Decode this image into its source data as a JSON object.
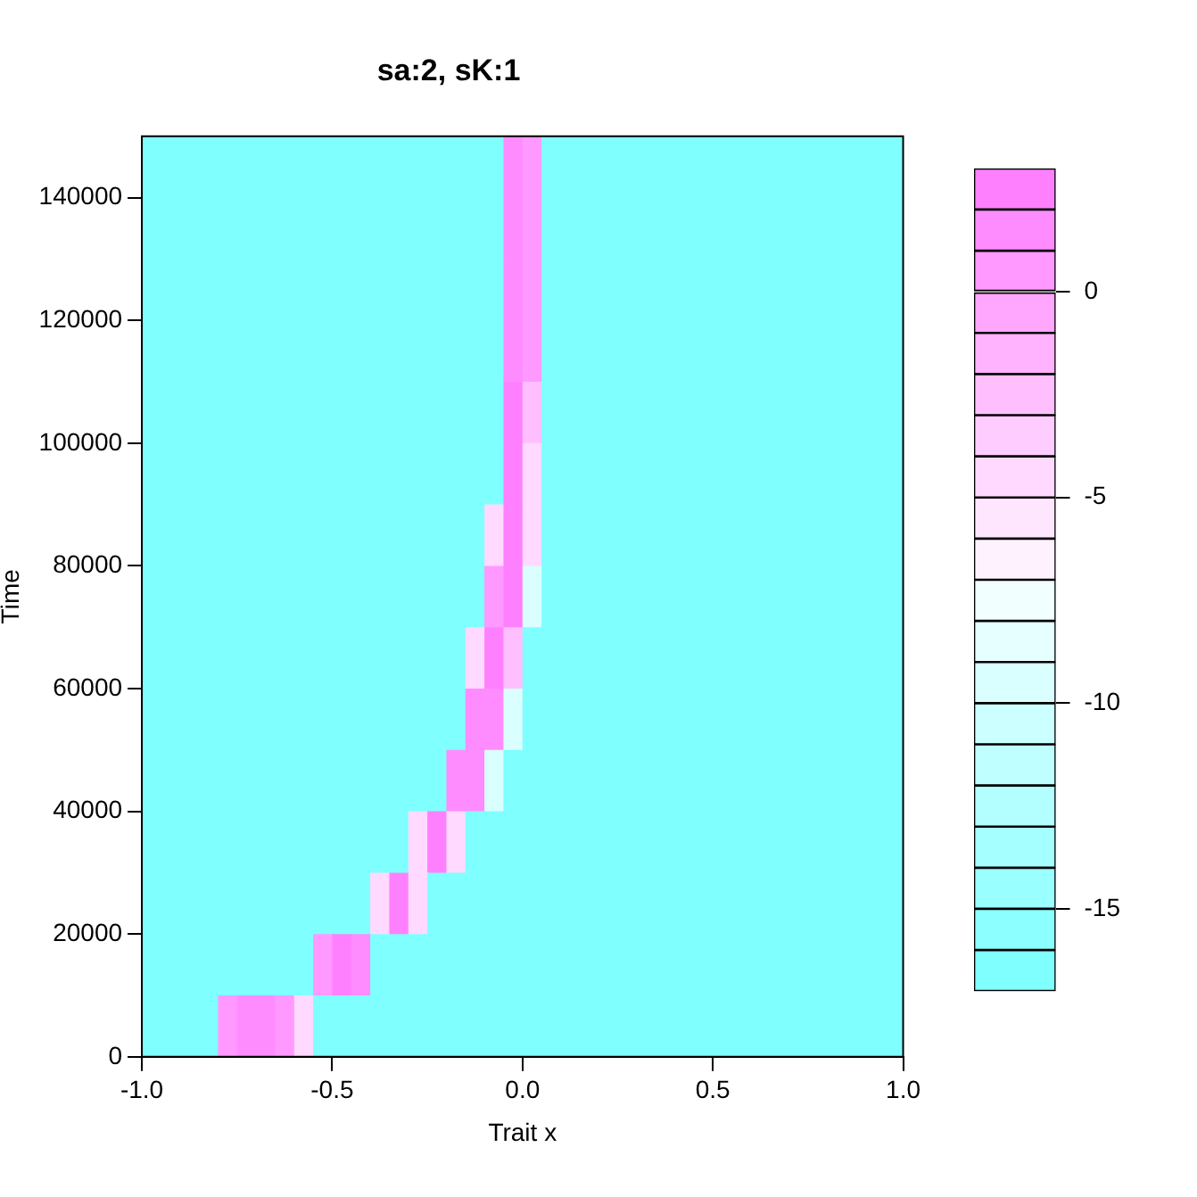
{
  "chart_data": {
    "type": "heatmap",
    "title": "sa:2, sK:1",
    "xlabel": "Trait x",
    "ylabel": "Time",
    "x": [
      -0.975,
      -0.925,
      -0.875,
      -0.825,
      -0.775,
      -0.725,
      -0.675,
      -0.625,
      -0.575,
      -0.525,
      -0.475,
      -0.425,
      -0.375,
      -0.325,
      -0.275,
      -0.225,
      -0.175,
      -0.125,
      -0.075,
      -0.025,
      0.025,
      0.075,
      0.125,
      0.175,
      0.225,
      0.275,
      0.325,
      0.375,
      0.425,
      0.475,
      0.525,
      0.575,
      0.625,
      0.675,
      0.725,
      0.775,
      0.825,
      0.875,
      0.925,
      0.975
    ],
    "cells": [
      [
        -17,
        -17,
        -17,
        -17,
        -17,
        -17,
        -17,
        -17,
        -17,
        -17,
        -17,
        -17,
        -17,
        -17,
        -17,
        -17,
        -17,
        -17,
        -17,
        1,
        0,
        -17,
        -17,
        -17,
        -17,
        -17,
        -17,
        -17,
        -17,
        -17,
        -17,
        -17,
        -17,
        -17,
        -17,
        -17,
        -17,
        -17,
        -17,
        -17
      ],
      [
        -17,
        -17,
        -17,
        -17,
        -17,
        -17,
        -17,
        -17,
        -17,
        -17,
        -17,
        -17,
        -17,
        -17,
        -17,
        -17,
        -17,
        -17,
        -17,
        1,
        0,
        -17,
        -17,
        -17,
        -17,
        -17,
        -17,
        -17,
        -17,
        -17,
        -17,
        -17,
        -17,
        -17,
        -17,
        -17,
        -17,
        -17,
        -17,
        -17
      ],
      [
        -17,
        -17,
        -17,
        -17,
        -17,
        -17,
        -17,
        -17,
        -17,
        -17,
        -17,
        -17,
        -17,
        -17,
        -17,
        -17,
        -17,
        -17,
        -17,
        1,
        0,
        -17,
        -17,
        -17,
        -17,
        -17,
        -17,
        -17,
        -17,
        -17,
        -17,
        -17,
        -17,
        -17,
        -17,
        -17,
        -17,
        -17,
        -17,
        -17
      ],
      [
        -17,
        -17,
        -17,
        -17,
        -17,
        -17,
        -17,
        -17,
        -17,
        -17,
        -17,
        -17,
        -17,
        -17,
        -17,
        -17,
        -17,
        -17,
        -17,
        1,
        0,
        -17,
        -17,
        -17,
        -17,
        -17,
        -17,
        -17,
        -17,
        -17,
        -17,
        -17,
        -17,
        -17,
        -17,
        -17,
        -17,
        -17,
        -17,
        -17
      ],
      [
        -17,
        -17,
        -17,
        -17,
        -17,
        -17,
        -17,
        -17,
        -17,
        -17,
        -17,
        -17,
        -17,
        -17,
        -17,
        -17,
        -17,
        -17,
        -17,
        2,
        -3,
        -17,
        -17,
        -17,
        -17,
        -17,
        -17,
        -17,
        -17,
        -17,
        -17,
        -17,
        -17,
        -17,
        -17,
        -17,
        -17,
        -17,
        -17,
        -17
      ],
      [
        -17,
        -17,
        -17,
        -17,
        -17,
        -17,
        -17,
        -17,
        -17,
        -17,
        -17,
        -17,
        -17,
        -17,
        -17,
        -17,
        -17,
        -17,
        -17,
        2,
        -5,
        -17,
        -17,
        -17,
        -17,
        -17,
        -17,
        -17,
        -17,
        -17,
        -17,
        -17,
        -17,
        -17,
        -17,
        -17,
        -17,
        -17,
        -17,
        -17
      ],
      [
        -17,
        -17,
        -17,
        -17,
        -17,
        -17,
        -17,
        -17,
        -17,
        -17,
        -17,
        -17,
        -17,
        -17,
        -17,
        -17,
        -17,
        -17,
        -5,
        2,
        -5,
        -17,
        -17,
        -17,
        -17,
        -17,
        -17,
        -17,
        -17,
        -17,
        -17,
        -17,
        -17,
        -17,
        -17,
        -17,
        -17,
        -17,
        -17,
        -17
      ],
      [
        -17,
        -17,
        -17,
        -17,
        -17,
        -17,
        -17,
        -17,
        -17,
        -17,
        -17,
        -17,
        -17,
        -17,
        -17,
        -17,
        -17,
        -17,
        0,
        2,
        -10,
        -17,
        -17,
        -17,
        -17,
        -17,
        -17,
        -17,
        -17,
        -17,
        -17,
        -17,
        -17,
        -17,
        -17,
        -17,
        -17,
        -17,
        -17,
        -17
      ],
      [
        -17,
        -17,
        -17,
        -17,
        -17,
        -17,
        -17,
        -17,
        -17,
        -17,
        -17,
        -17,
        -17,
        -17,
        -17,
        -17,
        -17,
        -5,
        2,
        -3,
        -17,
        -17,
        -17,
        -17,
        -17,
        -17,
        -17,
        -17,
        -17,
        -17,
        -17,
        -17,
        -17,
        -17,
        -17,
        -17,
        -17,
        -17,
        -17,
        -17
      ],
      [
        -17,
        -17,
        -17,
        -17,
        -17,
        -17,
        -17,
        -17,
        -17,
        -17,
        -17,
        -17,
        -17,
        -17,
        -17,
        -17,
        -17,
        1,
        1,
        -10,
        -17,
        -17,
        -17,
        -17,
        -17,
        -17,
        -17,
        -17,
        -17,
        -17,
        -17,
        -17,
        -17,
        -17,
        -17,
        -17,
        -17,
        -17,
        -17,
        -17
      ],
      [
        -17,
        -17,
        -17,
        -17,
        -17,
        -17,
        -17,
        -17,
        -17,
        -17,
        -17,
        -17,
        -17,
        -17,
        -17,
        -17,
        1,
        1,
        -10,
        -17,
        -17,
        -17,
        -17,
        -17,
        -17,
        -17,
        -17,
        -17,
        -17,
        -17,
        -17,
        -17,
        -17,
        -17,
        -17,
        -17,
        -17,
        -17,
        -17,
        -17
      ],
      [
        -17,
        -17,
        -17,
        -17,
        -17,
        -17,
        -17,
        -17,
        -17,
        -17,
        -17,
        -17,
        -17,
        -17,
        -5,
        2,
        -5,
        -17,
        -17,
        -17,
        -17,
        -17,
        -17,
        -17,
        -17,
        -17,
        -17,
        -17,
        -17,
        -17,
        -17,
        -17,
        -17,
        -17,
        -17,
        -17,
        -17,
        -17,
        -17,
        -17
      ],
      [
        -17,
        -17,
        -17,
        -17,
        -17,
        -17,
        -17,
        -17,
        -17,
        -17,
        -17,
        -17,
        -5,
        2,
        -5,
        -17,
        -17,
        -17,
        -17,
        -17,
        -17,
        -17,
        -17,
        -17,
        -17,
        -17,
        -17,
        -17,
        -17,
        -17,
        -17,
        -17,
        -17,
        -17,
        -17,
        -17,
        -17,
        -17,
        -17,
        -17
      ],
      [
        -17,
        -17,
        -17,
        -17,
        -17,
        -17,
        -17,
        -17,
        -17,
        0,
        2,
        1,
        -17,
        -17,
        -17,
        -17,
        -17,
        -17,
        -17,
        -17,
        -17,
        -17,
        -17,
        -17,
        -17,
        -17,
        -17,
        -17,
        -17,
        -17,
        -17,
        -17,
        -17,
        -17,
        -17,
        -17,
        -17,
        -17,
        -17,
        -17
      ],
      [
        -17,
        -17,
        -17,
        -17,
        0,
        1,
        1,
        0,
        -5,
        -17,
        -17,
        -17,
        -17,
        -17,
        -17,
        -17,
        -17,
        -17,
        -17,
        -17,
        -17,
        -17,
        -17,
        -17,
        -17,
        -17,
        -17,
        -17,
        -17,
        -17,
        -17,
        -17,
        -17,
        -17,
        -17,
        -17,
        -17,
        -17,
        -17,
        -17
      ]
    ],
    "colors": [
      "#80ffff",
      "#8cffff",
      "#99ffff",
      "#a6ffff",
      "#b3ffff",
      "#bfffff",
      "#ccffff",
      "#d9ffff",
      "#e6ffff",
      "#f2ffff",
      "#fff2ff",
      "#ffe6ff",
      "#ffd9ff",
      "#ffccff",
      "#ffbfff",
      "#ffb3ff",
      "#ffa6ff",
      "#ff99ff",
      "#ff8cff",
      "#ff80ff"
    ],
    "clim": [
      -17,
      3
    ],
    "cticks": [
      -15,
      -10,
      -5,
      0
    ],
    "xlim": [
      -1,
      1
    ],
    "xticks": [
      {
        "value": -1,
        "label": "-1.0"
      },
      -0.5,
      {
        "value": 0,
        "label": "0.0"
      },
      0.5,
      {
        "value": 1,
        "label": "1.0"
      }
    ],
    "ylim": [
      0,
      150000
    ],
    "yticks": [
      0,
      20000,
      40000,
      60000,
      80000,
      100000,
      120000,
      140000
    ],
    "grid": false,
    "legend": false
  }
}
